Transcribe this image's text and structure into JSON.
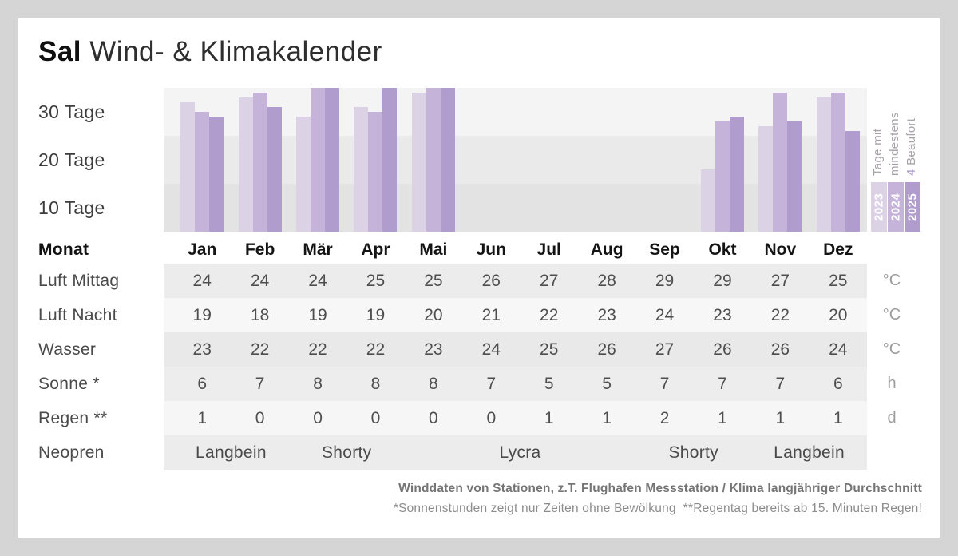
{
  "title": {
    "bold": "Sal",
    "rest": " Wind- & Klimakalender"
  },
  "chart_data": {
    "type": "bar",
    "title": "Tage mit mindestens 4 Beaufort",
    "categories": [
      "Jan",
      "Feb",
      "Mär",
      "Apr",
      "Mai",
      "Jun",
      "Jul",
      "Aug",
      "Sep",
      "Okt",
      "Nov",
      "Dez"
    ],
    "ylabel": "Tage",
    "ylim": [
      0,
      30
    ],
    "y_ticks": [
      "30 Tage",
      "20 Tage",
      "10 Tage"
    ],
    "grid_bands": true,
    "legend_position": "right",
    "series": [
      {
        "name": "2023",
        "color": "#dcd2e6",
        "values": [
          27,
          28,
          24,
          26,
          29,
          null,
          null,
          null,
          null,
          13,
          22,
          28
        ]
      },
      {
        "name": "2024",
        "color": "#c6b3da",
        "values": [
          25,
          29,
          30,
          25,
          30,
          null,
          null,
          null,
          null,
          23,
          29,
          29
        ]
      },
      {
        "name": "2025",
        "color": "#b19cce",
        "values": [
          24,
          26,
          30,
          30,
          30,
          null,
          null,
          null,
          null,
          24,
          23,
          21
        ]
      }
    ],
    "side_label_lines": [
      {
        "pre": "Tage mit",
        "accent": "",
        "post": ""
      },
      {
        "pre": "mindestens",
        "accent": "",
        "post": ""
      },
      {
        "pre": "",
        "accent": "4",
        "post": " Beaufort"
      }
    ],
    "accent_color": "#ab94c9"
  },
  "table": {
    "header": {
      "label": "Monat"
    },
    "rows": [
      {
        "label": "Luft Mittag",
        "unit": "°C",
        "values": [
          "24",
          "24",
          "24",
          "25",
          "25",
          "26",
          "27",
          "28",
          "29",
          "29",
          "27",
          "25"
        ]
      },
      {
        "label": "Luft Nacht",
        "unit": "°C",
        "values": [
          "19",
          "18",
          "19",
          "19",
          "20",
          "21",
          "22",
          "23",
          "24",
          "23",
          "22",
          "20"
        ]
      },
      {
        "label": "Wasser",
        "unit": "°C",
        "values": [
          "23",
          "22",
          "22",
          "22",
          "23",
          "24",
          "25",
          "26",
          "27",
          "26",
          "26",
          "24"
        ]
      },
      {
        "label": "Sonne *",
        "unit": "h",
        "values": [
          "6",
          "7",
          "8",
          "8",
          "8",
          "7",
          "5",
          "5",
          "7",
          "7",
          "7",
          "6"
        ]
      },
      {
        "label": "Regen **",
        "unit": "d",
        "values": [
          "1",
          "0",
          "0",
          "0",
          "0",
          "0",
          "1",
          "1",
          "2",
          "1",
          "1",
          "1"
        ]
      }
    ],
    "neopren": {
      "label": "Neopren",
      "spans": [
        {
          "text": "Langbein",
          "cols": 2
        },
        {
          "text": "Shorty",
          "cols": 2
        },
        {
          "text": "Lycra",
          "cols": 4
        },
        {
          "text": "Shorty",
          "cols": 2
        },
        {
          "text": "Langbein",
          "cols": 2
        }
      ]
    }
  },
  "footer": {
    "line1": "Winddaten von Stationen, z.T. Flughafen Messstation / Klima langjähriger Durchschnitt",
    "line2": "*Sonnenstunden zeigt nur Zeiten ohne Bewölkung  **Regentag bereits ab 15. Minuten Regen!"
  }
}
